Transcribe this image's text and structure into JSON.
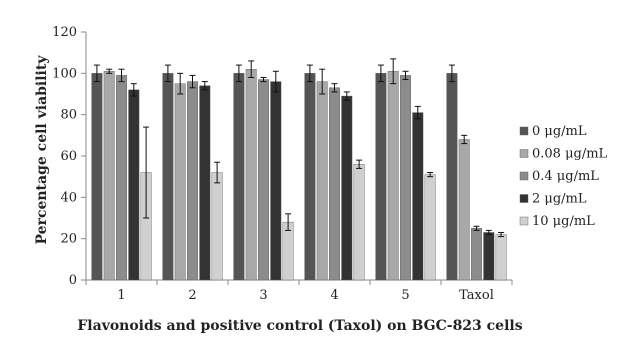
{
  "chart_data": {
    "type": "bar",
    "title": "",
    "xlabel": "Flavonoids and positive control (Taxol) on BGC-823 cells",
    "ylabel": "Percentage cell viability",
    "ylim": [
      0,
      120
    ],
    "yticks": [
      0,
      20,
      40,
      60,
      80,
      100,
      120
    ],
    "grid": false,
    "legend_position": "right",
    "categories": [
      "1",
      "2",
      "3",
      "4",
      "5",
      "Taxol"
    ],
    "series": [
      {
        "name": "0 μg/mL",
        "color": "#555555",
        "values": [
          100,
          100,
          100,
          100,
          100,
          100
        ],
        "errors": [
          4,
          4,
          4,
          4,
          4,
          4
        ]
      },
      {
        "name": "0.08 μg/mL",
        "color": "#a8a8a8",
        "values": [
          101,
          95,
          102,
          96,
          101,
          68
        ],
        "errors": [
          1,
          5,
          4,
          6,
          6,
          2
        ]
      },
      {
        "name": "0.4 μg/mL",
        "color": "#8c8c8c",
        "values": [
          99,
          96,
          97,
          93,
          99,
          25
        ],
        "errors": [
          3,
          3,
          1,
          2,
          2,
          1
        ]
      },
      {
        "name": "2 μg/mL",
        "color": "#333333",
        "values": [
          92,
          94,
          96,
          89,
          81,
          23
        ],
        "errors": [
          3,
          2,
          5,
          2,
          3,
          1
        ]
      },
      {
        "name": "10 μg/mL",
        "color": "#d0d0d0",
        "values": [
          52,
          52,
          28,
          56,
          51,
          22
        ],
        "errors": [
          22,
          5,
          4,
          2,
          1,
          1
        ]
      }
    ]
  }
}
